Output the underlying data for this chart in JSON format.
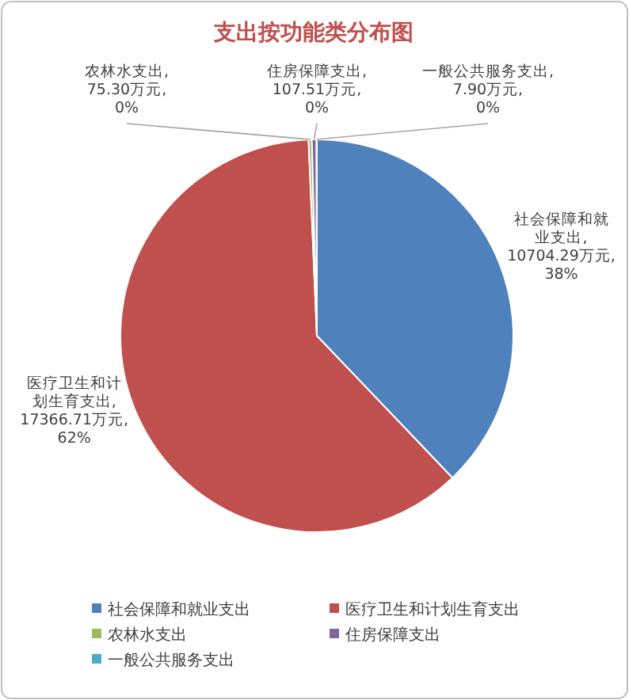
{
  "chart_data": {
    "type": "pie",
    "title": "支出按功能类分布图",
    "categories": [
      "社会保障和就业支出",
      "医疗卫生和计划生育支出",
      "农林水支出",
      "住房保障支出",
      "一般公共服务支出"
    ],
    "values": [
      10704.29,
      17366.71,
      75.3,
      107.51,
      7.9
    ],
    "colors": [
      "#4f81bd",
      "#c0504d",
      "#9bbb59",
      "#8064a2",
      "#4bacc6"
    ],
    "value_labels": [
      "社会保障和就业支出, 10704.29万元, 38%",
      "医疗卫生和计划生育支出, 17366.71万元, 62%",
      "农林水支出, 75.30万元, 0%",
      "住房保障支出, 107.51万元, 0%",
      "一般公共服务支出, 7.90万元, 0%"
    ],
    "legend": "bottom"
  }
}
